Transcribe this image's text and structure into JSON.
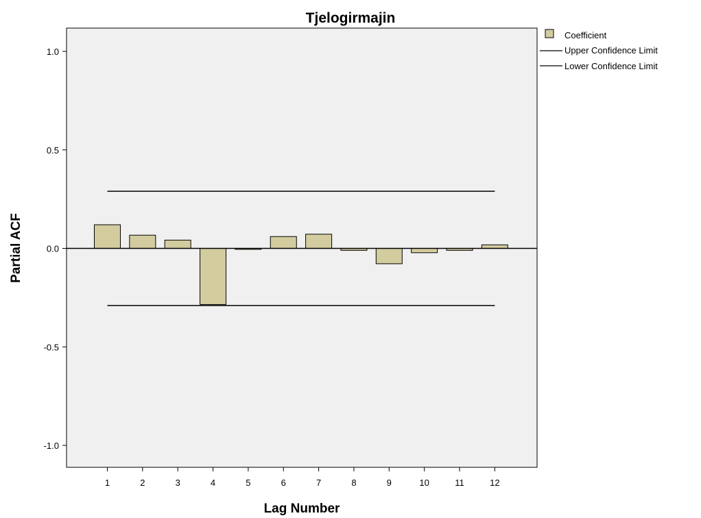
{
  "chart_data": {
    "type": "bar",
    "title": "Tjelogirmajin",
    "xlabel": "Lag Number",
    "ylabel": "Partial ACF",
    "categories": [
      "1",
      "2",
      "3",
      "4",
      "5",
      "6",
      "7",
      "8",
      "9",
      "10",
      "11",
      "12"
    ],
    "series": [
      {
        "name": "Coefficient",
        "values": [
          0.12,
          0.067,
          0.042,
          -0.285,
          -0.005,
          0.06,
          0.072,
          -0.01,
          -0.078,
          -0.022,
          -0.01,
          0.018
        ]
      }
    ],
    "upper_confidence_limit": 0.29,
    "lower_confidence_limit": -0.29,
    "legend": {
      "position": "right",
      "entries": [
        "Coefficient",
        "Upper Confidence Limit",
        "Lower Confidence Limit"
      ]
    },
    "ylim": [
      -1.1,
      1.12
    ],
    "yticks": [
      1.0,
      0.5,
      0.0,
      -0.5,
      -1.0
    ],
    "ytick_labels": [
      "1.0",
      "0.5",
      "0.0",
      "-0.5",
      "-1.0"
    ],
    "grid": false,
    "colors": {
      "bar_fill": "#d3cc9f",
      "bar_stroke": "#000000",
      "plot_background": "#f0f0f0",
      "confidence_line": "#000000"
    }
  }
}
